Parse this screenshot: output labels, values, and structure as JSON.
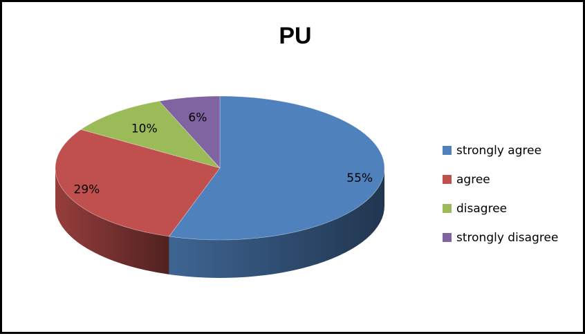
{
  "chart_data": {
    "type": "pie",
    "style": "3d",
    "title": "PU",
    "legend_position": "right",
    "slices": [
      {
        "name": "strongly agree",
        "value": 55,
        "label": "55%",
        "color": "#4F81BD"
      },
      {
        "name": "agree",
        "value": 29,
        "label": "29%",
        "color": "#C0504D"
      },
      {
        "name": "disagree",
        "value": 10,
        "label": "10%",
        "color": "#9BBB59"
      },
      {
        "name": "strongly disagree",
        "value": 6,
        "label": "6%",
        "color": "#8064A2"
      }
    ]
  }
}
